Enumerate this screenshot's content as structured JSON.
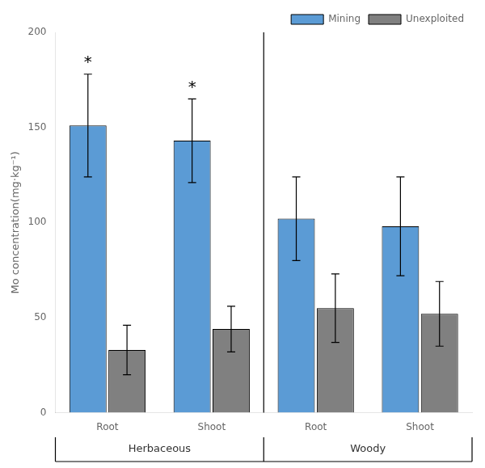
{
  "chart_data": {
    "type": "bar",
    "y_label": "Mo concentration(mg·kg⁻¹)",
    "categories": [
      "Root",
      "Shoot",
      "Root",
      "Shoot"
    ],
    "groups": [
      "Herbaceous",
      "Woody"
    ],
    "series": [
      {
        "name": "Mining",
        "color": "#5B9BD5",
        "values": [
          151,
          143,
          102,
          98
        ],
        "errors": [
          27,
          22,
          22,
          26
        ]
      },
      {
        "name": "Unexploited",
        "color": "#808080",
        "values": [
          33,
          44,
          55,
          52
        ],
        "errors": [
          13,
          12,
          18,
          17
        ]
      }
    ],
    "annotations": [
      {
        "text": "*",
        "series": "Mining",
        "category_index": 0
      },
      {
        "text": "*",
        "series": "Mining",
        "category_index": 1
      }
    ],
    "ylim": [
      0,
      200
    ],
    "yticks": [
      0,
      50,
      100,
      150,
      200
    ],
    "grid": false,
    "legend": "upper right"
  }
}
